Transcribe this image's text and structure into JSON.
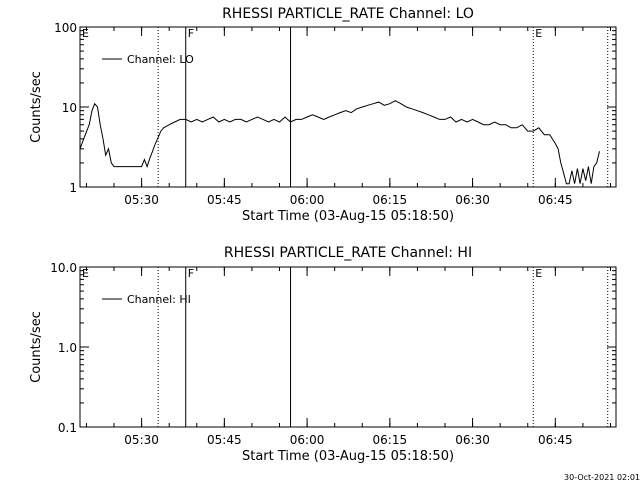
{
  "footer_timestamp": "30-Oct-2021 02:01",
  "chart_data": [
    {
      "type": "line",
      "title": "RHESSI PARTICLE_RATE Channel: LO",
      "xlabel": "Start Time (03-Aug-15 05:18:50)",
      "ylabel": "Counts/sec",
      "y_scale": "log",
      "ylim": [
        1,
        100
      ],
      "y_ticks": [
        {
          "value": 1,
          "label": "1"
        },
        {
          "value": 10,
          "label": "10"
        },
        {
          "value": 100,
          "label": "100"
        }
      ],
      "xlim": [
        "05:18:50",
        "06:56:00"
      ],
      "x_ticks": [
        "05:30",
        "05:45",
        "06:00",
        "06:15",
        "06:30",
        "06:45"
      ],
      "legend": {
        "position": "top-left",
        "entries": [
          "Channel: LO"
        ]
      },
      "event_markers": [
        {
          "label": "E",
          "time": "05:18:50",
          "style": "none"
        },
        {
          "label": "",
          "time": "05:33:00",
          "style": "dotted"
        },
        {
          "label": "F",
          "time": "05:38:00",
          "style": "solid"
        },
        {
          "label": "",
          "time": "05:57:00",
          "style": "solid"
        },
        {
          "label": "E",
          "time": "06:41:00",
          "style": "dotted"
        },
        {
          "label": "",
          "time": "06:54:30",
          "style": "dotted"
        }
      ],
      "series": [
        {
          "name": "Channel: LO",
          "x": [
            "05:18:50",
            "05:19:30",
            "05:20:30",
            "05:21:00",
            "05:21:30",
            "05:22:00",
            "05:22:30",
            "05:23:00",
            "05:23:30",
            "05:24:00",
            "05:24:30",
            "05:25:00",
            "05:25:30",
            "05:26:00",
            "05:30:00",
            "05:30:30",
            "05:31:00",
            "05:31:30",
            "05:32:00",
            "05:32:30",
            "05:33:30",
            "05:34:00",
            "05:35:00",
            "05:36:00",
            "05:37:00",
            "05:38:00",
            "05:39:00",
            "05:40:00",
            "05:41:00",
            "05:42:00",
            "05:43:00",
            "05:44:00",
            "05:45:00",
            "05:46:00",
            "05:47:00",
            "05:48:00",
            "05:49:00",
            "05:50:00",
            "05:51:00",
            "05:52:00",
            "05:53:00",
            "05:54:00",
            "05:55:00",
            "05:56:00",
            "05:57:00",
            "05:58:00",
            "05:59:00",
            "06:00:00",
            "06:01:00",
            "06:02:00",
            "06:03:00",
            "06:04:00",
            "06:05:00",
            "06:06:00",
            "06:07:00",
            "06:08:00",
            "06:09:00",
            "06:10:00",
            "06:11:00",
            "06:12:00",
            "06:13:00",
            "06:14:00",
            "06:15:00",
            "06:16:00",
            "06:17:00",
            "06:18:00",
            "06:19:00",
            "06:20:00",
            "06:21:00",
            "06:22:00",
            "06:23:00",
            "06:24:00",
            "06:25:00",
            "06:26:00",
            "06:27:00",
            "06:28:00",
            "06:29:00",
            "06:30:00",
            "06:31:00",
            "06:32:00",
            "06:33:00",
            "06:34:00",
            "06:35:00",
            "06:36:00",
            "06:37:00",
            "06:38:00",
            "06:39:00",
            "06:40:00",
            "06:41:00",
            "06:42:00",
            "06:43:00",
            "06:44:00",
            "06:45:00",
            "06:45:30",
            "06:46:00",
            "06:46:30",
            "06:47:00",
            "06:47:30",
            "06:48:00",
            "06:48:30",
            "06:49:00",
            "06:49:30",
            "06:50:00",
            "06:50:30",
            "06:51:00",
            "06:51:30",
            "06:52:00",
            "06:52:30",
            "06:53:00"
          ],
          "y": [
            3,
            4,
            6,
            9,
            11,
            10,
            6,
            4,
            2.5,
            3,
            2,
            1.8,
            1.8,
            1.8,
            1.8,
            2.2,
            1.8,
            2.3,
            2.8,
            3.5,
            5,
            5.5,
            6,
            6.5,
            7,
            7,
            6.5,
            7,
            6.5,
            7,
            7.5,
            6.5,
            7,
            6.5,
            7,
            7,
            6.5,
            7,
            7.5,
            7,
            6.5,
            7,
            6.5,
            7.5,
            6.5,
            7,
            7,
            7.5,
            8,
            7.5,
            7,
            7.5,
            8,
            8.5,
            9,
            8.5,
            9.5,
            10,
            10.5,
            11,
            11.5,
            10.5,
            11,
            12,
            11,
            10,
            9.5,
            9,
            8.5,
            8,
            7.5,
            7,
            7,
            7.5,
            6.5,
            7,
            6.5,
            7,
            6.5,
            6,
            6,
            6.5,
            6,
            6,
            5.5,
            5.5,
            6,
            5,
            5,
            5.5,
            4.5,
            4.5,
            3.5,
            3,
            2,
            1.5,
            1.1,
            1.1,
            1.6,
            1.1,
            1.7,
            1.1,
            1.7,
            1.2,
            1.8,
            1.1,
            1.8,
            2,
            2.8
          ]
        }
      ]
    },
    {
      "type": "line",
      "title": "RHESSI PARTICLE_RATE Channel: HI",
      "xlabel": "Start Time (03-Aug-15 05:18:50)",
      "ylabel": "Counts/sec",
      "y_scale": "log",
      "ylim": [
        0.1,
        10
      ],
      "y_ticks": [
        {
          "value": 0.1,
          "label": "0.1"
        },
        {
          "value": 1,
          "label": "1.0"
        },
        {
          "value": 10,
          "label": "10.0"
        }
      ],
      "xlim": [
        "05:18:50",
        "06:56:00"
      ],
      "x_ticks": [
        "05:30",
        "05:45",
        "06:00",
        "06:15",
        "06:30",
        "06:45"
      ],
      "legend": {
        "position": "top-left",
        "entries": [
          "Channel: HI"
        ]
      },
      "event_markers": [
        {
          "label": "E",
          "time": "05:18:50",
          "style": "none"
        },
        {
          "label": "",
          "time": "05:33:00",
          "style": "dotted"
        },
        {
          "label": "F",
          "time": "05:38:00",
          "style": "solid"
        },
        {
          "label": "",
          "time": "05:57:00",
          "style": "solid"
        },
        {
          "label": "E",
          "time": "06:41:00",
          "style": "dotted"
        },
        {
          "label": "",
          "time": "06:54:30",
          "style": "dotted"
        }
      ],
      "series": [
        {
          "name": "Channel: HI",
          "x": [],
          "y": []
        }
      ]
    }
  ]
}
